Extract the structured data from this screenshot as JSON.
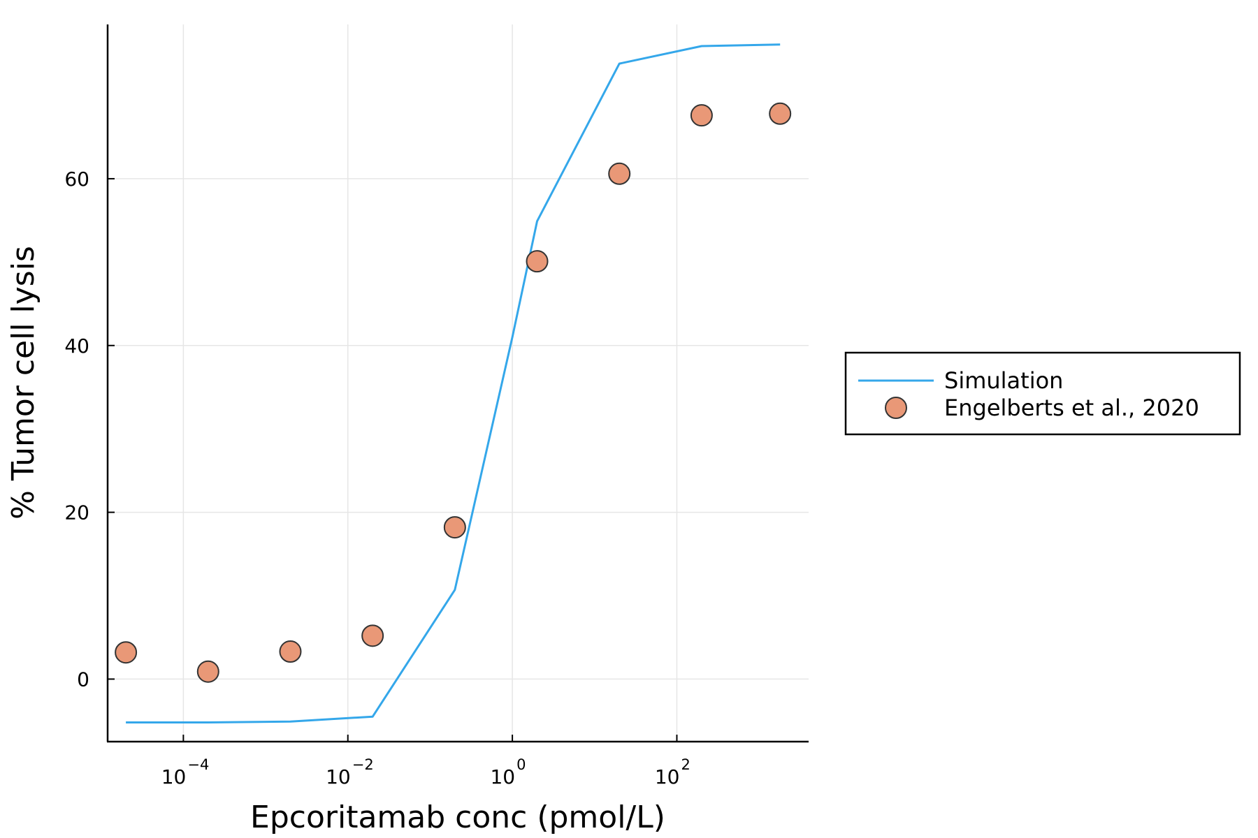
{
  "chart_data": {
    "type": "line",
    "xlabel": "Epcoritamab conc (pmol/L)",
    "ylabel": "% Tumor cell lysis",
    "xscale": "log10",
    "xlim": [
      1.2e-05,
      4000
    ],
    "ylim": [
      -7.5,
      78.5
    ],
    "grid": true,
    "legend_position": "right",
    "x_ticks": [
      {
        "value": 0.0001,
        "base": "10",
        "exp": "−4"
      },
      {
        "value": 0.01,
        "base": "10",
        "exp": "−2"
      },
      {
        "value": 1,
        "base": "10",
        "exp": "0"
      },
      {
        "value": 100,
        "base": "10",
        "exp": "2"
      }
    ],
    "y_ticks": [
      {
        "value": 0,
        "label": "0"
      },
      {
        "value": 20,
        "label": "20"
      },
      {
        "value": 40,
        "label": "40"
      },
      {
        "value": 60,
        "label": "60"
      }
    ],
    "series": [
      {
        "name": "Simulation",
        "kind": "line",
        "color": "#34a7ea",
        "x": [
          2e-05,
          0.0002,
          0.002,
          0.02,
          0.2,
          1.0,
          2.0,
          20.0,
          200.0,
          1800.0
        ],
        "y": [
          -5.2,
          -5.2,
          -5.1,
          -4.5,
          10.7,
          41.0,
          54.9,
          73.8,
          75.9,
          76.1
        ]
      },
      {
        "name": "Engelberts et al., 2020",
        "kind": "scatter",
        "color": "#e99877",
        "edge_color": "#333333",
        "x": [
          2e-05,
          0.0002,
          0.002,
          0.02,
          0.2,
          2.0,
          20.0,
          200.0,
          1800.0
        ],
        "y": [
          3.2,
          0.9,
          3.3,
          5.2,
          18.2,
          50.1,
          60.6,
          67.6,
          67.8
        ]
      }
    ]
  }
}
